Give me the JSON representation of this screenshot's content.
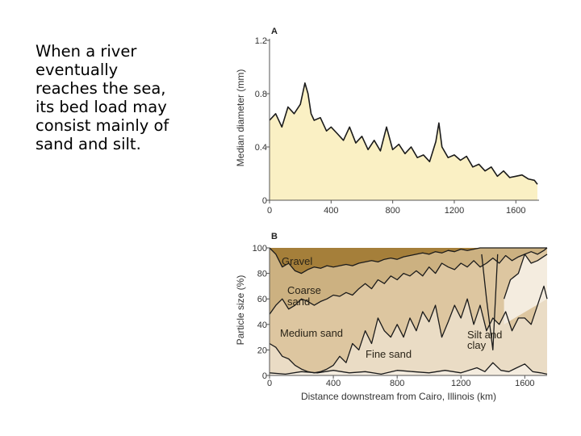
{
  "caption": {
    "lines": [
      "When a river",
      "eventually",
      "reaches the sea,",
      "its bed load may",
      "consist mainly of",
      "sand and silt."
    ]
  },
  "chart_data": [
    {
      "type": "area",
      "panel_label": "A",
      "xlabel": "",
      "ylabel": "Median diameter (mm)",
      "xlim": [
        0,
        1740
      ],
      "ylim": [
        0,
        1.2
      ],
      "xticks": [
        "0",
        "400",
        "800",
        "1200",
        "1600"
      ],
      "yticks": [
        "0",
        "0.4",
        "0.8",
        "1.2"
      ],
      "x": [
        0,
        40,
        80,
        120,
        160,
        200,
        230,
        250,
        270,
        290,
        330,
        370,
        400,
        440,
        480,
        520,
        560,
        600,
        640,
        680,
        720,
        760,
        800,
        840,
        880,
        920,
        960,
        1000,
        1040,
        1080,
        1100,
        1120,
        1160,
        1200,
        1240,
        1280,
        1320,
        1360,
        1400,
        1440,
        1480,
        1520,
        1560,
        1600,
        1640,
        1680,
        1720,
        1740
      ],
      "values": [
        0.6,
        0.65,
        0.55,
        0.7,
        0.65,
        0.72,
        0.88,
        0.8,
        0.65,
        0.6,
        0.62,
        0.52,
        0.55,
        0.5,
        0.45,
        0.55,
        0.43,
        0.48,
        0.38,
        0.45,
        0.37,
        0.55,
        0.38,
        0.42,
        0.35,
        0.4,
        0.32,
        0.34,
        0.29,
        0.44,
        0.58,
        0.4,
        0.32,
        0.34,
        0.3,
        0.33,
        0.25,
        0.27,
        0.22,
        0.25,
        0.18,
        0.22,
        0.17,
        0.18,
        0.19,
        0.16,
        0.15,
        0.12
      ],
      "fill_color": "#faf0c4",
      "line_color": "#1a1a1a"
    },
    {
      "type": "area",
      "panel_label": "B",
      "xlabel": "Distance downstream from Cairo, Illinois (km)",
      "ylabel": "Particle size (%)",
      "xlim": [
        0,
        1740
      ],
      "ylim": [
        0,
        100
      ],
      "xticks": [
        "0",
        "400",
        "800",
        "1200",
        "1600"
      ],
      "yticks": [
        "0",
        "20",
        "40",
        "60",
        "80",
        "100"
      ],
      "region_labels": [
        "Gravel",
        "Coarse sand",
        "Medium sand",
        "Fine sand",
        "Silt and clay"
      ],
      "boundaries": [
        {
          "name": "Silt and clay / Fine sand",
          "x": [
            0,
            100,
            200,
            300,
            400,
            500,
            600,
            700,
            800,
            900,
            1000,
            1100,
            1200,
            1300,
            1350,
            1400,
            1450,
            1500,
            1550,
            1600,
            1650,
            1700,
            1740
          ],
          "values": [
            2,
            1,
            3,
            2,
            4,
            2,
            3,
            1,
            4,
            3,
            2,
            4,
            2,
            6,
            3,
            10,
            4,
            3,
            6,
            9,
            3,
            2,
            1
          ]
        },
        {
          "name": "Fine sand / Medium sand",
          "x": [
            0,
            40,
            80,
            120,
            160,
            200,
            240,
            280,
            320,
            360,
            400,
            440,
            480,
            520,
            560,
            600,
            640,
            680,
            720,
            760,
            800,
            840,
            880,
            920,
            960,
            1000,
            1040,
            1080,
            1120,
            1160,
            1200,
            1240,
            1280,
            1320,
            1360,
            1400,
            1440,
            1480,
            1520,
            1560,
            1600,
            1640,
            1680,
            1720,
            1740
          ],
          "values": [
            25,
            22,
            15,
            13,
            8,
            5,
            3,
            2,
            3,
            5,
            8,
            15,
            10,
            25,
            20,
            35,
            25,
            45,
            35,
            30,
            40,
            30,
            45,
            35,
            50,
            42,
            55,
            30,
            42,
            55,
            45,
            60,
            40,
            55,
            35,
            45,
            40,
            50,
            35,
            45,
            45,
            40,
            55,
            70,
            60
          ]
        },
        {
          "name": "Medium sand / Coarse sand",
          "x": [
            0,
            40,
            80,
            120,
            160,
            200,
            240,
            280,
            320,
            360,
            400,
            440,
            480,
            520,
            560,
            600,
            640,
            680,
            720,
            760,
            800,
            840,
            880,
            920,
            960,
            1000,
            1040,
            1080,
            1120,
            1160,
            1200,
            1240,
            1280,
            1320,
            1360,
            1400,
            1440,
            1480,
            1520,
            1560,
            1600,
            1640,
            1680,
            1720,
            1740
          ],
          "values": [
            48,
            55,
            60,
            52,
            55,
            60,
            58,
            55,
            58,
            60,
            63,
            62,
            65,
            63,
            68,
            72,
            68,
            75,
            72,
            78,
            75,
            80,
            78,
            82,
            78,
            85,
            80,
            88,
            85,
            83,
            88,
            85,
            90,
            85,
            88,
            92,
            88,
            94,
            90,
            93,
            95,
            97,
            95,
            98,
            100
          ]
        },
        {
          "name": "Coarse sand / Gravel",
          "x": [
            0,
            40,
            80,
            120,
            160,
            200,
            240,
            280,
            320,
            360,
            400,
            440,
            480,
            520,
            560,
            600,
            640,
            680,
            720,
            760,
            800,
            840,
            880,
            920,
            960,
            1000,
            1040,
            1080,
            1120,
            1160,
            1200,
            1240,
            1280,
            1320,
            1360,
            1400,
            1440,
            1480,
            1520,
            1560,
            1600,
            1640,
            1680,
            1720,
            1740
          ],
          "values": [
            100,
            95,
            85,
            88,
            82,
            80,
            83,
            85,
            84,
            86,
            85,
            86,
            87,
            86,
            88,
            89,
            90,
            89,
            91,
            92,
            91,
            93,
            94,
            95,
            96,
            95,
            97,
            96,
            98,
            97,
            99,
            98,
            99,
            100,
            100,
            100,
            100,
            100,
            100,
            100,
            100,
            100,
            100,
            100,
            100
          ]
        }
      ],
      "extra_lines": [
        {
          "name": "Silt spike",
          "x": [
            1330,
            1360,
            1400,
            1430
          ],
          "values": [
            95,
            60,
            20,
            95
          ]
        },
        {
          "name": "Silt band",
          "x": [
            1470,
            1510,
            1560,
            1600,
            1640,
            1680,
            1740
          ],
          "values": [
            60,
            75,
            80,
            95,
            88,
            90,
            95
          ]
        }
      ],
      "colors": {
        "gravel": "#a57f3a",
        "coarse_sand": "#ccb181",
        "medium_sand": "#ddc6a0",
        "fine_sand": "#eadcc5",
        "silt_clay": "#f4ecdf",
        "line": "#1a1a1a"
      }
    }
  ]
}
